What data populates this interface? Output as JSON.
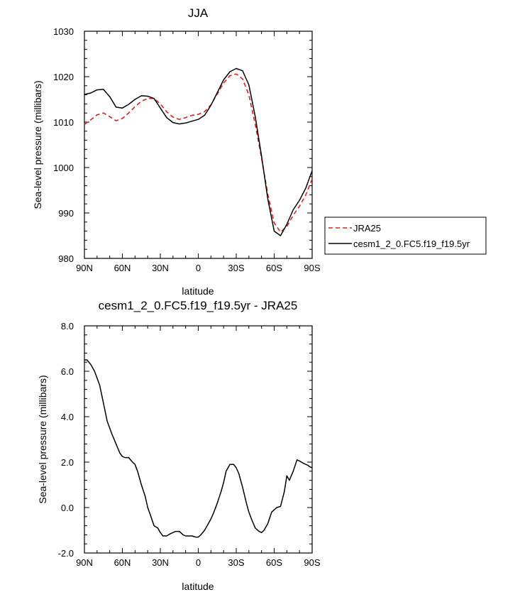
{
  "chart_data": [
    {
      "type": "line",
      "title": "JJA",
      "xlabel": "latitude",
      "ylabel": "Sea-level pressure (millibars)",
      "xlim": [
        90,
        -90
      ],
      "ylim": [
        980,
        1030
      ],
      "xticks": [
        {
          "v": 90,
          "label": "90N"
        },
        {
          "v": 60,
          "label": "60N"
        },
        {
          "v": 30,
          "label": "30N"
        },
        {
          "v": 0,
          "label": "0"
        },
        {
          "v": -30,
          "label": "30S"
        },
        {
          "v": -60,
          "label": "60S"
        },
        {
          "v": -90,
          "label": "90S"
        }
      ],
      "yticks": [
        {
          "v": 980,
          "label": "980"
        },
        {
          "v": 990,
          "label": "990"
        },
        {
          "v": 1000,
          "label": "1000"
        },
        {
          "v": 1010,
          "label": "1010"
        },
        {
          "v": 1020,
          "label": "1020"
        },
        {
          "v": 1030,
          "label": "1030"
        }
      ],
      "legend": "right",
      "series": [
        {
          "name": "JRA25",
          "color": "#e02020",
          "dash": "dashed",
          "x": [
            90,
            85,
            80,
            75,
            70,
            65,
            60,
            55,
            50,
            45,
            40,
            35,
            30,
            25,
            20,
            15,
            10,
            5,
            0,
            -5,
            -10,
            -15,
            -20,
            -25,
            -30,
            -35,
            -40,
            -45,
            -50,
            -55,
            -60,
            -65,
            -70,
            -75,
            -80,
            -85,
            -90
          ],
          "y": [
            1009.5,
            1010.5,
            1011.6,
            1012.0,
            1011.2,
            1010.3,
            1010.8,
            1012.0,
            1013.4,
            1014.6,
            1015.2,
            1015.2,
            1014.0,
            1012.3,
            1011.1,
            1010.6,
            1011.0,
            1011.5,
            1011.7,
            1012.3,
            1013.8,
            1016.2,
            1018.6,
            1020.2,
            1020.6,
            1019.5,
            1016.0,
            1009.5,
            1002.0,
            994.0,
            987.8,
            985.8,
            987.0,
            989.5,
            991.5,
            994.0,
            997.5
          ]
        },
        {
          "name": "cesm1_2_0.FC5.f19_f19.5yr",
          "color": "#000000",
          "dash": "solid",
          "x": [
            90,
            85,
            80,
            75,
            70,
            65,
            60,
            55,
            50,
            45,
            40,
            35,
            30,
            25,
            20,
            15,
            10,
            5,
            0,
            -5,
            -10,
            -15,
            -20,
            -25,
            -30,
            -35,
            -40,
            -45,
            -50,
            -55,
            -60,
            -65,
            -70,
            -75,
            -80,
            -85,
            -90
          ],
          "y": [
            1016.1,
            1016.4,
            1017.1,
            1017.2,
            1015.6,
            1013.3,
            1013.1,
            1013.9,
            1015.0,
            1015.8,
            1015.7,
            1015.2,
            1013.1,
            1011.0,
            1009.9,
            1009.6,
            1009.8,
            1010.2,
            1010.6,
            1011.5,
            1013.7,
            1016.5,
            1019.3,
            1021.1,
            1021.8,
            1021.3,
            1018.2,
            1011.2,
            1002.5,
            993.0,
            986.0,
            985.0,
            987.5,
            990.7,
            992.8,
            995.5,
            999.3
          ]
        }
      ]
    },
    {
      "type": "line",
      "title": "cesm1_2_0.FC5.f19_f19.5yr - JRA25",
      "xlabel": "latitude",
      "ylabel": "Sea-level pressure (millibars)",
      "xlim": [
        90,
        -90
      ],
      "ylim": [
        -2.0,
        8.0
      ],
      "xticks": [
        {
          "v": 90,
          "label": "90N"
        },
        {
          "v": 60,
          "label": "60N"
        },
        {
          "v": 30,
          "label": "30N"
        },
        {
          "v": 0,
          "label": "0"
        },
        {
          "v": -30,
          "label": "30S"
        },
        {
          "v": -60,
          "label": "60S"
        },
        {
          "v": -90,
          "label": "90S"
        }
      ],
      "yticks": [
        {
          "v": -2.0,
          "label": "-2.0"
        },
        {
          "v": 0.0,
          "label": "0.0"
        },
        {
          "v": 2.0,
          "label": "2.0"
        },
        {
          "v": 4.0,
          "label": "4.0"
        },
        {
          "v": 6.0,
          "label": "6.0"
        },
        {
          "v": 8.0,
          "label": "8.0"
        }
      ],
      "series": [
        {
          "color": "#000000",
          "dash": "solid",
          "x": [
            90,
            88,
            85,
            82,
            78,
            75,
            72,
            68,
            65,
            62,
            60,
            58,
            55,
            52,
            50,
            48,
            45,
            42,
            40,
            38,
            35,
            32,
            30,
            28,
            25,
            22,
            20,
            18,
            15,
            12,
            10,
            8,
            5,
            2,
            0,
            -2,
            -5,
            -8,
            -10,
            -12,
            -15,
            -18,
            -20,
            -22,
            -25,
            -28,
            -30,
            -32,
            -35,
            -38,
            -40,
            -42,
            -45,
            -48,
            -50,
            -52,
            -55,
            -58,
            -60,
            -62,
            -65,
            -68,
            -70,
            -72,
            -75,
            -78,
            -80,
            -83,
            -85,
            -87,
            -88,
            -90
          ],
          "y": [
            6.5,
            6.5,
            6.3,
            6.0,
            5.4,
            4.6,
            3.8,
            3.2,
            2.8,
            2.4,
            2.25,
            2.2,
            2.2,
            2.0,
            1.9,
            1.6,
            1.0,
            0.5,
            0.0,
            -0.3,
            -0.8,
            -0.9,
            -1.1,
            -1.25,
            -1.25,
            -1.15,
            -1.1,
            -1.05,
            -1.05,
            -1.2,
            -1.25,
            -1.25,
            -1.25,
            -1.3,
            -1.3,
            -1.2,
            -1.0,
            -0.7,
            -0.5,
            -0.25,
            0.2,
            0.7,
            1.1,
            1.6,
            1.9,
            1.9,
            1.75,
            1.5,
            0.9,
            0.2,
            -0.2,
            -0.5,
            -0.9,
            -1.05,
            -1.1,
            -1.0,
            -0.7,
            -0.2,
            -0.1,
            0.0,
            0.05,
            0.7,
            1.4,
            1.2,
            1.6,
            2.1,
            2.05,
            1.95,
            1.9,
            1.85,
            1.8,
            1.75
          ]
        }
      ]
    }
  ]
}
